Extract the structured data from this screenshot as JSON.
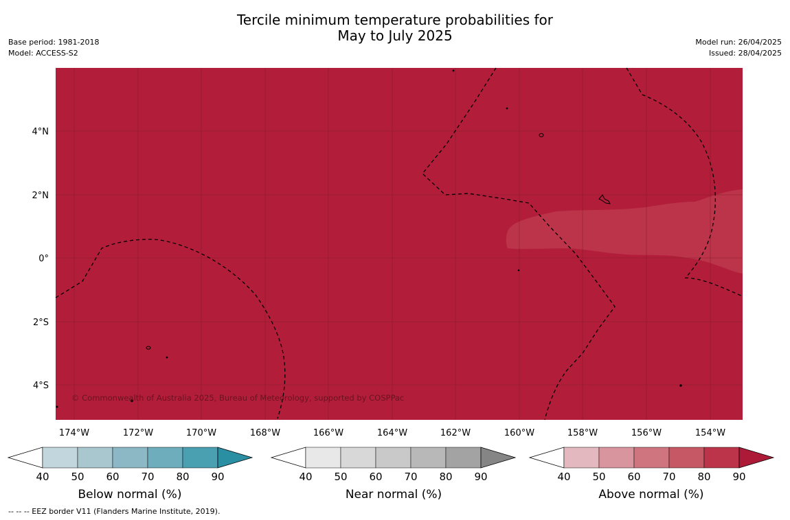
{
  "header": {
    "title_line1": "Tercile minimum temperature probabilities for",
    "title_line2": "May to July 2025",
    "base_period": "Base period: 1981-2018",
    "model": "Model: ACCESS-S2",
    "model_run": "Model run: 26/04/2025",
    "issued": "Issued: 28/04/2025"
  },
  "map": {
    "lat_labels": [
      "4°N",
      "2°N",
      "0°",
      "2°S",
      "4°S"
    ],
    "lon_labels": [
      "174°W",
      "172°W",
      "170°W",
      "168°W",
      "166°W",
      "164°W",
      "162°W",
      "160°W",
      "158°W",
      "156°W",
      "154°W"
    ],
    "copyright": "© Commonwealth of Australia 2025, Bureau of Meteorology, supported by COSPPac",
    "colors": {
      "above_90": "#b21e3a",
      "above_80": "#bb3449",
      "grid": "#7a1a2a",
      "eez": "#000000"
    }
  },
  "colorbars": [
    {
      "title": "Below normal (%)",
      "ticks": [
        "40",
        "50",
        "60",
        "70",
        "80",
        "90"
      ],
      "colors": [
        "#ffffff",
        "#c2d6dd",
        "#a8c7ce",
        "#8cb8c5",
        "#6eaebc",
        "#4a9fb1",
        "#2b8fa3"
      ]
    },
    {
      "title": "Near normal (%)",
      "ticks": [
        "40",
        "50",
        "60",
        "70",
        "80",
        "90"
      ],
      "colors": [
        "#ffffff",
        "#e8e8e8",
        "#d8d8d8",
        "#c9c9c9",
        "#b8b8b8",
        "#a3a3a3",
        "#858585"
      ]
    },
    {
      "title": "Above normal (%)",
      "ticks": [
        "40",
        "50",
        "60",
        "70",
        "80",
        "90"
      ],
      "colors": [
        "#ffffff",
        "#e3b9bf",
        "#d9959e",
        "#cf7580",
        "#c55864",
        "#bb3449",
        "#ad1a38"
      ]
    }
  ],
  "footer": {
    "eez_note": "--  --  -- EEZ border V11 (Flanders Marine Institute, 2019)."
  }
}
